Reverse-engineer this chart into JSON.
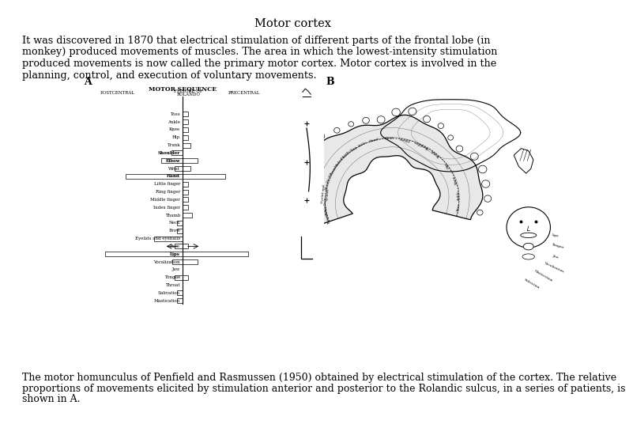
{
  "title": "Motor cortex",
  "bg_color": "#ffffff",
  "text_color": "#000000",
  "title_fontsize": 10.5,
  "body_fontsize": 9.2,
  "caption_fontsize": 9.0,
  "intro_text": "It was discovered in 1870 that electrical stimulation of different parts of the frontal lobe (in\nmonkey) produced movements of muscles. The area in which the lowest-intensity stimulation\nproduced movements is now called the primary motor cortex. Motor cortex is involved in the\nplanning, control, and execution of voluntary movements.",
  "caption_text": "The motor homunculus of Penfield and Rasmussen (1950) obtained by electrical stimulation of the cortex. The relative\nproportions of movements elicited by stimulation anterior and posterior to the Rolandic sulcus, in a series of patients, is\nshown in A.",
  "font_family": "DejaVu Serif",
  "diagram_header": "MOTOR SEQUENCE",
  "col_label_post": "POSTCENTRAL",
  "col_label_fiss1": "FISSURE OF",
  "col_label_fiss2": "ROLANDO",
  "col_label_pre": "PRECENTRAL",
  "label_A": "A",
  "label_B": "B",
  "body_parts": [
    "Toes",
    "Ankle",
    "Knee",
    "Hip",
    "Trunk",
    "Shoulder",
    "Elbow",
    "Wrist",
    "Hand",
    "Little finger",
    "Ring finger",
    "Middle finger",
    "Index finger",
    "Thumb",
    "Neck",
    "Brow",
    "Eyelids and eyeballs",
    "Face",
    "Lips",
    "Vocalization",
    "Jaw",
    "Tongue",
    "Throat",
    "Salivation",
    "Mastication"
  ],
  "bold_parts": [
    "Shoulder",
    "Elbow",
    "Hand",
    "Lips"
  ],
  "bars": {
    "Toes": [
      0.0,
      0.28
    ],
    "Ankle": [
      0.0,
      0.28
    ],
    "Knee": [
      0.0,
      0.28
    ],
    "Hip": [
      0.0,
      0.28
    ],
    "Trunk": [
      0.0,
      0.38
    ],
    "Shoulder": [
      0.55,
      0.0
    ],
    "Elbow": [
      1.05,
      0.75
    ],
    "Wrist": [
      0.38,
      0.38
    ],
    "Hand": [
      2.8,
      2.1
    ],
    "Little finger": [
      0.0,
      0.28
    ],
    "Ring finger": [
      0.0,
      0.28
    ],
    "Middle finger": [
      0.0,
      0.28
    ],
    "Index finger": [
      0.0,
      0.28
    ],
    "Thumb": [
      0.0,
      0.48
    ],
    "Neck": [
      0.28,
      0.0
    ],
    "Brow": [
      0.28,
      0.0
    ],
    "Eyelids and eyeballs": [
      1.4,
      0.0
    ],
    "Face": [
      0.38,
      0.28
    ],
    "Lips": [
      3.8,
      3.2
    ],
    "Vocalization": [
      0.5,
      0.75
    ],
    "Jaw": [
      0.0,
      0.0
    ],
    "Tongue": [
      0.38,
      0.28
    ],
    "Throat": [
      0.0,
      0.0
    ],
    "Salivation": [
      0.28,
      0.0
    ],
    "Mastication": [
      0.28,
      0.0
    ]
  }
}
